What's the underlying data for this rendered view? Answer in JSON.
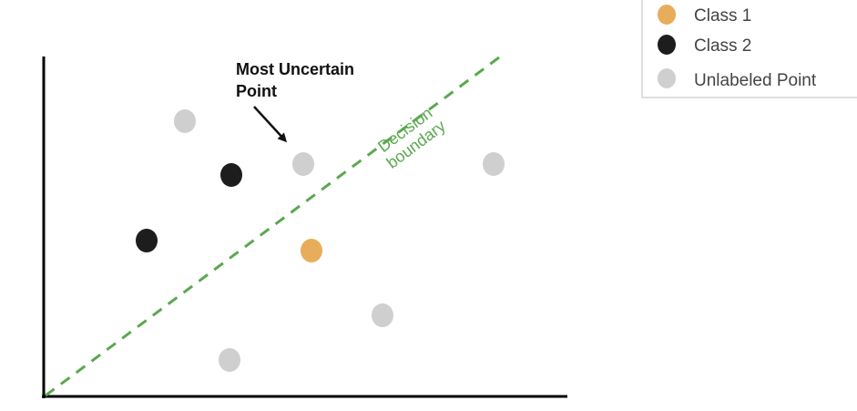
{
  "legend": {
    "items": [
      {
        "label": "Class 1",
        "class": "class1"
      },
      {
        "label": "Class 2",
        "class": "class2"
      },
      {
        "label": "Unlabeled Point",
        "class": "unlabeled"
      }
    ]
  },
  "annotation": {
    "lines": [
      "Most Uncertain",
      "Point"
    ]
  },
  "boundary": {
    "label_lines": [
      "Decision",
      "boundary"
    ]
  },
  "colors": {
    "class1": "#e8ad5b",
    "class2": "#1d1d1d",
    "unlabeled": "#cfcfcf",
    "boundary": "#5aa84f",
    "axis": "#000000"
  },
  "points": [
    {
      "class": "unlabeled"
    },
    {
      "class": "class2"
    },
    {
      "class": "unlabeled",
      "most_uncertain": true
    },
    {
      "class": "unlabeled"
    },
    {
      "class": "class2"
    },
    {
      "class": "class1"
    },
    {
      "class": "unlabeled"
    },
    {
      "class": "unlabeled"
    }
  ]
}
